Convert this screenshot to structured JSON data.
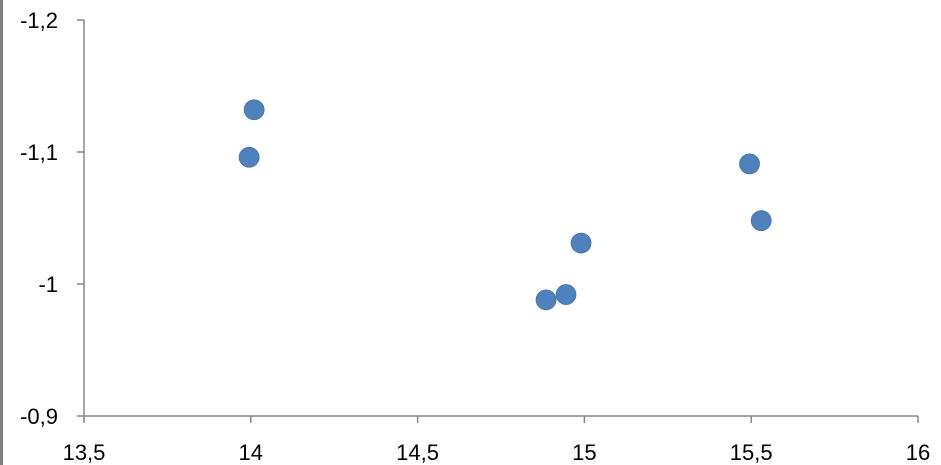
{
  "chart_data": {
    "type": "scatter",
    "title": "",
    "xlabel": "",
    "ylabel": "",
    "xlim": [
      13.5,
      16
    ],
    "ylim": [
      -1.2,
      -0.9
    ],
    "y_axis_reversed": true,
    "x_ticks": [
      13.5,
      14,
      14.5,
      15,
      15.5,
      16
    ],
    "y_ticks": [
      -1.2,
      -1.1,
      -1,
      -0.9
    ],
    "x_tick_labels": [
      "13,5",
      "14",
      "14,5",
      "15",
      "15,5",
      "16"
    ],
    "y_tick_labels": [
      "-1,2",
      "-1,1",
      "-1",
      "-0,9"
    ],
    "grid": false,
    "legend": false,
    "series": [
      {
        "color": "#4f81bd",
        "points": [
          {
            "x": 14.01,
            "y": -1.132
          },
          {
            "x": 13.995,
            "y": -1.096
          },
          {
            "x": 14.885,
            "y": -0.988
          },
          {
            "x": 14.945,
            "y": -0.992
          },
          {
            "x": 14.99,
            "y": -1.031
          },
          {
            "x": 15.495,
            "y": -1.091
          },
          {
            "x": 15.53,
            "y": -1.048
          }
        ]
      }
    ]
  }
}
